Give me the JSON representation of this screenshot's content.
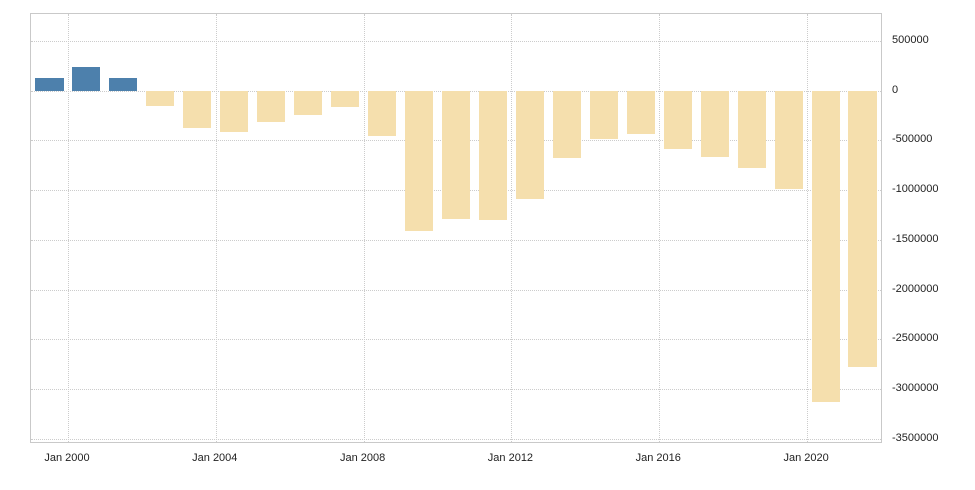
{
  "chart_data": {
    "type": "bar",
    "title": "",
    "legend": "none",
    "grid": "dotted",
    "categories": [
      "1999",
      "2000",
      "2001",
      "2002",
      "2003",
      "2004",
      "2005",
      "2006",
      "2007",
      "2008",
      "2009",
      "2010",
      "2011",
      "2012",
      "2013",
      "2014",
      "2015",
      "2016",
      "2017",
      "2018",
      "2019",
      "2020",
      "2021"
    ],
    "values": [
      126000,
      236000,
      128000,
      -158000,
      -378000,
      -413000,
      -318000,
      -248000,
      -161000,
      -459000,
      -1413000,
      -1294000,
      -1300000,
      -1087000,
      -680000,
      -485000,
      -438000,
      -585000,
      -665000,
      -779000,
      -984000,
      -3132000,
      -2772000
    ],
    "yticks": [
      500000,
      0,
      -500000,
      -1000000,
      -1500000,
      -2000000,
      -2500000,
      -3000000,
      -3500000
    ],
    "ytick_labels": [
      "500000",
      "0",
      "-500000",
      "-1000000",
      "-1500000",
      "-2000000",
      "-2500000",
      "-3000000",
      "-3500000"
    ],
    "ylim": [
      -3530000,
      770000
    ],
    "xticks": [
      {
        "label": "Jan 2000",
        "category": "2000"
      },
      {
        "label": "Jan 2004",
        "category": "2004"
      },
      {
        "label": "Jan 2008",
        "category": "2008"
      },
      {
        "label": "Jan 2012",
        "category": "2012"
      },
      {
        "label": "Jan 2016",
        "category": "2016"
      },
      {
        "label": "Jan 2020",
        "category": "2020"
      }
    ],
    "positive_color": "#4d80ac",
    "negative_color": "#f5dfad",
    "grid_color": "#cccccc",
    "axis_text_color": "#222222"
  }
}
